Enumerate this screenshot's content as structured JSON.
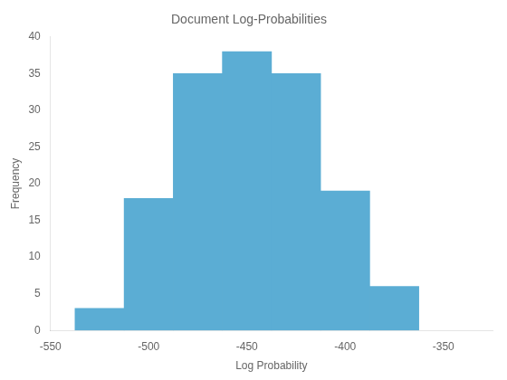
{
  "chart_data": {
    "type": "histogram",
    "title": "Document Log-Probabilities",
    "xlabel": "Log Probability",
    "ylabel": "Frequency",
    "bins": [
      -537.5,
      -512.5,
      -487.5,
      -462.5,
      -437.5,
      -412.5,
      -387.5,
      -362.5
    ],
    "values": [
      3,
      18,
      35,
      38,
      35,
      19,
      6
    ],
    "color": "#5BADD4",
    "xlim": [
      -550,
      -325
    ],
    "xticks": [
      -550,
      -500,
      -450,
      -400,
      -350
    ],
    "ylim": [
      0,
      40
    ],
    "yticks": [
      0,
      5,
      10,
      15,
      20,
      25,
      30,
      35,
      40
    ],
    "grid": false
  }
}
